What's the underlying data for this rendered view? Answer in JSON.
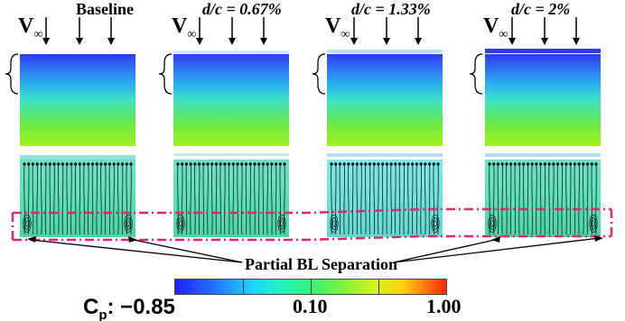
{
  "panels": [
    {
      "title": "Baseline"
    },
    {
      "title": "d/c = 0.67%"
    },
    {
      "title": "d/c = 1.33%"
    },
    {
      "title": "d/c = 2%"
    }
  ],
  "freestream_label": "V",
  "freestream_subscript": "∞",
  "annotation": "Partial BL Separation",
  "colorbar": {
    "variable": "C",
    "variable_subscript": "p",
    "min_label": ": −0.85",
    "mid_label": "0.10",
    "max_label": "1.00",
    "colors": [
      "#2121ff",
      "#1fd0ff",
      "#31f27a",
      "#d8f21f",
      "#ff7a10",
      "#ff2a0a"
    ]
  },
  "highlight_color": "#e8246e"
}
